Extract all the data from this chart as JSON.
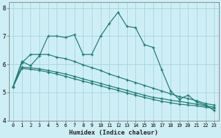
{
  "xlabel": "Humidex (Indice chaleur)",
  "bg_color": "#ceeef5",
  "grid_color": "#a8d8e0",
  "line_color": "#1e7b70",
  "xlim": [
    -0.5,
    23.5
  ],
  "ylim": [
    4,
    8.2
  ],
  "yticks": [
    4,
    5,
    6,
    7,
    8
  ],
  "xticks": [
    0,
    1,
    2,
    3,
    4,
    5,
    6,
    7,
    8,
    9,
    10,
    11,
    12,
    13,
    14,
    15,
    16,
    17,
    18,
    19,
    20,
    21,
    22,
    23
  ],
  "series": [
    {
      "x": [
        0,
        1,
        2,
        3,
        4,
        5,
        6,
        7,
        8,
        9,
        10,
        11,
        12,
        13,
        14,
        15,
        16,
        17,
        18,
        19,
        20,
        21,
        22,
        23
      ],
      "y": [
        5.2,
        6.1,
        5.95,
        6.3,
        7.0,
        7.0,
        6.95,
        7.05,
        6.35,
        6.35,
        7.0,
        7.45,
        7.85,
        7.35,
        7.3,
        6.7,
        6.6,
        5.8,
        5.05,
        4.75,
        4.9,
        4.65,
        4.55,
        4.35
      ]
    },
    {
      "x": [
        0,
        1,
        2,
        3,
        4,
        5,
        6,
        7,
        8,
        9,
        10,
        11,
        12,
        13,
        14,
        15,
        16,
        17,
        18,
        19,
        20,
        21,
        22,
        23
      ],
      "y": [
        5.2,
        6.05,
        6.35,
        6.35,
        6.35,
        6.25,
        6.2,
        6.1,
        5.98,
        5.88,
        5.78,
        5.65,
        5.55,
        5.45,
        5.35,
        5.25,
        5.15,
        5.05,
        4.95,
        4.85,
        4.78,
        4.7,
        4.6,
        4.55
      ]
    },
    {
      "x": [
        0,
        1,
        2,
        3,
        4,
        5,
        6,
        7,
        8,
        9,
        10,
        11,
        12,
        13,
        14,
        15,
        16,
        17,
        18,
        19,
        20,
        21,
        22,
        23
      ],
      "y": [
        5.2,
        5.9,
        5.87,
        5.84,
        5.78,
        5.72,
        5.65,
        5.57,
        5.48,
        5.4,
        5.32,
        5.23,
        5.15,
        5.07,
        4.98,
        4.9,
        4.82,
        4.78,
        4.72,
        4.68,
        4.63,
        4.58,
        4.52,
        4.48
      ]
    },
    {
      "x": [
        0,
        1,
        2,
        3,
        4,
        5,
        6,
        7,
        8,
        9,
        10,
        11,
        12,
        13,
        14,
        15,
        16,
        17,
        18,
        19,
        20,
        21,
        22,
        23
      ],
      "y": [
        5.2,
        5.85,
        5.82,
        5.78,
        5.72,
        5.65,
        5.57,
        5.48,
        5.4,
        5.32,
        5.23,
        5.15,
        5.07,
        4.98,
        4.9,
        4.82,
        4.75,
        4.68,
        4.63,
        4.58,
        4.55,
        4.52,
        4.47,
        4.43
      ]
    }
  ]
}
